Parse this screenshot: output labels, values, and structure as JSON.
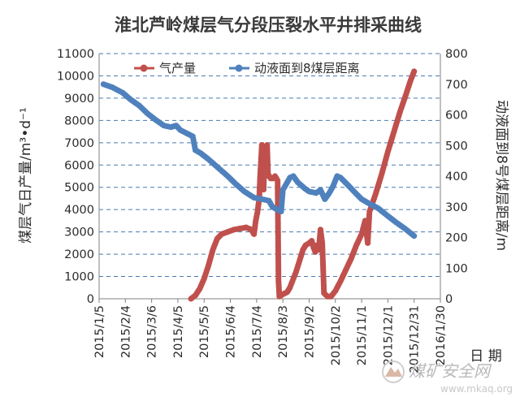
{
  "chart_data": {
    "type": "line",
    "title": "淮北芦岭煤层气分段压裂水平井排采曲线",
    "xlabel": "日 期",
    "ylabel_left": "煤层气日产量/m³•d⁻¹",
    "ylabel_right": "动液面到8号煤层距离/m",
    "x_tick_labels": [
      "2015/1/5",
      "2015/2/4",
      "2015/3/6",
      "2015/4/5",
      "2015/5/5",
      "2015/6/4",
      "2015/7/4",
      "2015/8/3",
      "2015/9/2",
      "2015/10/2",
      "2015/11/1",
      "2015/12/1",
      "2015/12/31",
      "2016/1/30"
    ],
    "x_range": [
      "2015/1/5",
      "2016/1/30"
    ],
    "ylim_left": [
      0,
      11000
    ],
    "ylim_right": [
      0,
      800
    ],
    "y_ticks_left": [
      0,
      1000,
      2000,
      3000,
      4000,
      5000,
      6000,
      7000,
      8000,
      9000,
      10000,
      11000
    ],
    "y_ticks_right": [
      0,
      100,
      200,
      300,
      400,
      500,
      600,
      700,
      800
    ],
    "grid": "horizontal dashed",
    "legend": "top",
    "series": [
      {
        "name": "气产量",
        "color": "#c0504d",
        "axis": "left",
        "points": [
          [
            "2015/4/20",
            0
          ],
          [
            "2015/4/25",
            150
          ],
          [
            "2015/4/30",
            450
          ],
          [
            "2015/5/5",
            900
          ],
          [
            "2015/5/10",
            1500
          ],
          [
            "2015/5/15",
            2200
          ],
          [
            "2015/5/20",
            2700
          ],
          [
            "2015/5/25",
            2900
          ],
          [
            "2015/6/1",
            3000
          ],
          [
            "2015/6/8",
            3100
          ],
          [
            "2015/6/15",
            3150
          ],
          [
            "2015/6/22",
            3200
          ],
          [
            "2015/6/28",
            3100
          ],
          [
            "2015/7/1",
            2900
          ],
          [
            "2015/7/3",
            3500
          ],
          [
            "2015/7/5",
            3900
          ],
          [
            "2015/7/7",
            4500
          ],
          [
            "2015/7/8",
            5500
          ],
          [
            "2015/7/10",
            6900
          ],
          [
            "2015/7/11",
            6000
          ],
          [
            "2015/7/12",
            4900
          ],
          [
            "2015/7/13",
            6800
          ],
          [
            "2015/7/14",
            5500
          ],
          [
            "2015/7/16",
            6900
          ],
          [
            "2015/7/17",
            5600
          ],
          [
            "2015/7/20",
            5400
          ],
          [
            "2015/7/23",
            5400
          ],
          [
            "2015/7/25",
            5500
          ],
          [
            "2015/7/28",
            5300
          ],
          [
            "2015/7/29",
            800
          ],
          [
            "2015/7/30",
            100
          ],
          [
            "2015/8/3",
            200
          ],
          [
            "2015/8/8",
            300
          ],
          [
            "2015/8/11",
            500
          ],
          [
            "2015/8/14",
            800
          ],
          [
            "2015/8/18",
            1200
          ],
          [
            "2015/8/22",
            1700
          ],
          [
            "2015/8/26",
            2200
          ],
          [
            "2015/8/29",
            2400
          ],
          [
            "2015/9/2",
            2500
          ],
          [
            "2015/9/5",
            2600
          ],
          [
            "2015/9/7",
            2300
          ],
          [
            "2015/9/9",
            2100
          ],
          [
            "2015/9/11",
            2400
          ],
          [
            "2015/9/13",
            2200
          ],
          [
            "2015/9/15",
            3100
          ],
          [
            "2015/9/17",
            2500
          ],
          [
            "2015/9/19",
            250
          ],
          [
            "2015/9/23",
            100
          ],
          [
            "2015/9/27",
            100
          ],
          [
            "2015/10/2",
            350
          ],
          [
            "2015/10/8",
            800
          ],
          [
            "2015/10/14",
            1300
          ],
          [
            "2015/10/20",
            1800
          ],
          [
            "2015/10/26",
            2400
          ],
          [
            "2015/11/1",
            2900
          ],
          [
            "2015/11/5",
            3500
          ],
          [
            "2015/11/8",
            2500
          ],
          [
            "2015/11/10",
            3900
          ],
          [
            "2015/11/17",
            4700
          ],
          [
            "2015/11/24",
            5600
          ],
          [
            "2015/12/1",
            6600
          ],
          [
            "2015/12/8",
            7500
          ],
          [
            "2015/12/15",
            8400
          ],
          [
            "2015/12/22",
            9200
          ],
          [
            "2015/12/27",
            9800
          ],
          [
            "2015/12/31",
            10200
          ]
        ]
      },
      {
        "name": "动液面到8煤层距离",
        "color": "#4f81bd",
        "axis": "right",
        "points": [
          [
            "2015/1/10",
            700
          ],
          [
            "2015/1/20",
            690
          ],
          [
            "2015/2/1",
            672
          ],
          [
            "2015/2/10",
            650
          ],
          [
            "2015/2/20",
            630
          ],
          [
            "2015/3/1",
            605
          ],
          [
            "2015/3/10",
            585
          ],
          [
            "2015/3/20",
            565
          ],
          [
            "2015/3/28",
            560
          ],
          [
            "2015/4/3",
            565
          ],
          [
            "2015/4/8",
            550
          ],
          [
            "2015/4/15",
            540
          ],
          [
            "2015/4/22",
            530
          ],
          [
            "2015/4/25",
            485
          ],
          [
            "2015/5/1",
            475
          ],
          [
            "2015/5/10",
            455
          ],
          [
            "2015/5/20",
            430
          ],
          [
            "2015/6/1",
            400
          ],
          [
            "2015/6/10",
            375
          ],
          [
            "2015/6/20",
            350
          ],
          [
            "2015/7/1",
            330
          ],
          [
            "2015/7/10",
            325
          ],
          [
            "2015/7/18",
            320
          ],
          [
            "2015/7/22",
            300
          ],
          [
            "2015/7/28",
            290
          ],
          [
            "2015/8/1",
            285
          ],
          [
            "2015/8/3",
            355
          ],
          [
            "2015/8/7",
            375
          ],
          [
            "2015/8/11",
            395
          ],
          [
            "2015/8/15",
            400
          ],
          [
            "2015/8/20",
            380
          ],
          [
            "2015/8/28",
            360
          ],
          [
            "2015/9/2",
            350
          ],
          [
            "2015/9/10",
            345
          ],
          [
            "2015/9/15",
            355
          ],
          [
            "2015/9/20",
            325
          ],
          [
            "2015/9/25",
            345
          ],
          [
            "2015/9/29",
            365
          ],
          [
            "2015/10/4",
            400
          ],
          [
            "2015/10/8",
            395
          ],
          [
            "2015/10/15",
            375
          ],
          [
            "2015/10/25",
            345
          ],
          [
            "2015/11/1",
            325
          ],
          [
            "2015/11/10",
            310
          ],
          [
            "2015/11/20",
            295
          ],
          [
            "2015/12/1",
            270
          ],
          [
            "2015/12/10",
            250
          ],
          [
            "2015/12/20",
            230
          ],
          [
            "2015/12/31",
            205
          ]
        ]
      }
    ]
  },
  "watermark": {
    "brand": "煤矿安全网",
    "url": "www.mkaq.org"
  }
}
